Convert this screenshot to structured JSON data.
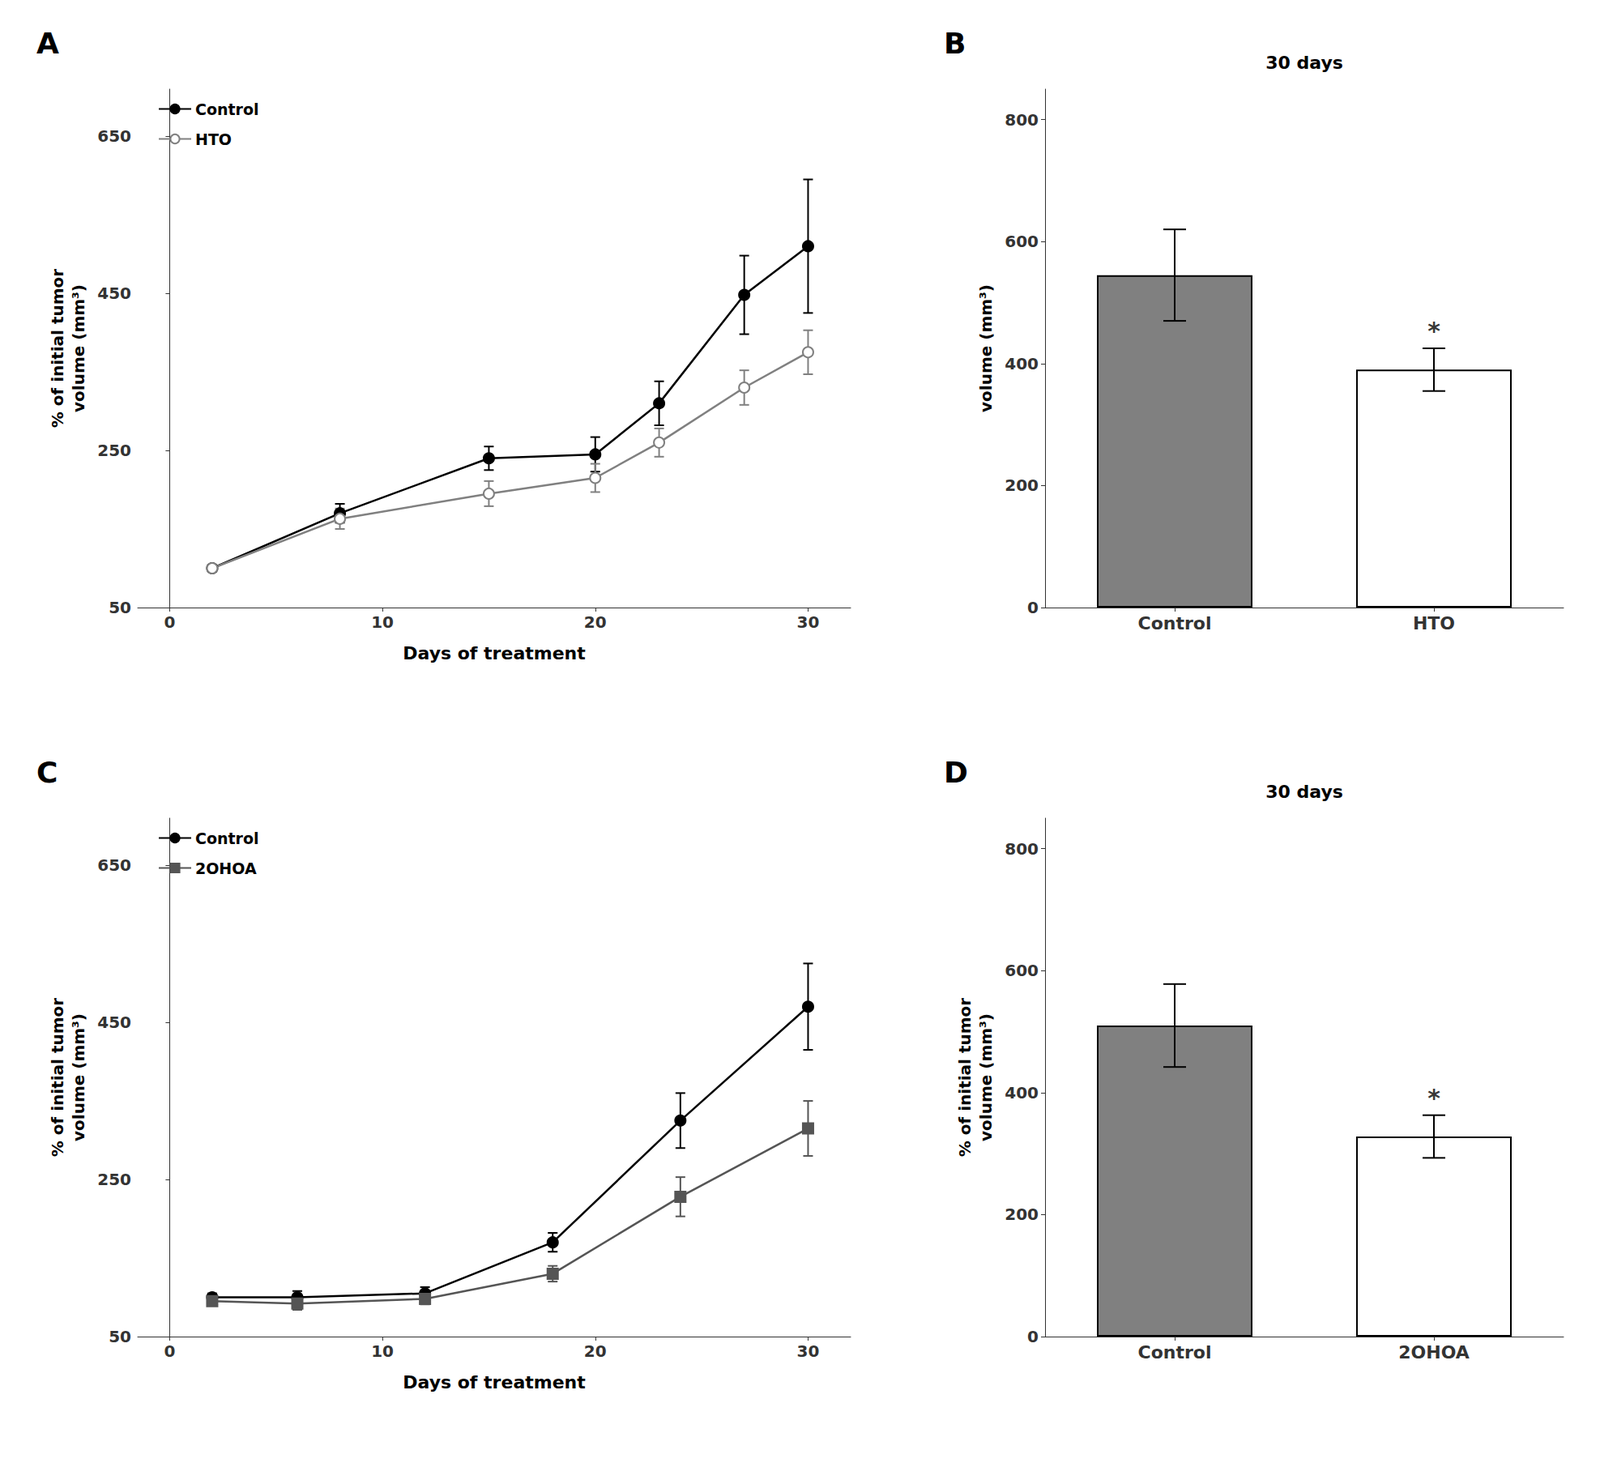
{
  "chart_data": [
    {
      "type": "line",
      "title": "A",
      "xlabel": "Days of treatment",
      "ylabel": "% of initial tumor\nvolume (mm³)",
      "xlim": [
        -1.5,
        32
      ],
      "xticks": [
        0,
        10,
        20,
        30
      ],
      "ylim": [
        50,
        710
      ],
      "yticks": [
        50,
        250,
        450,
        650
      ],
      "grid": false,
      "legend": "upper left",
      "x": [
        2,
        8,
        15,
        20,
        23,
        27,
        30
      ],
      "series": [
        {
          "name": "Control",
          "color": "#000000",
          "marker": "circle",
          "line_style": "solid",
          "values": [
            100,
            170,
            240,
            245,
            310,
            448,
            510
          ],
          "errors": [
            4,
            12,
            15,
            22,
            28,
            50,
            85
          ]
        },
        {
          "name": "HTO",
          "color": "#808080",
          "marker": "open_circle",
          "line_style": "solid",
          "values": [
            100,
            163,
            195,
            215,
            260,
            330,
            375
          ],
          "errors": [
            4,
            13,
            16,
            18,
            18,
            22,
            28
          ]
        }
      ]
    },
    {
      "type": "bar",
      "title": "B",
      "subtitle": "30 days",
      "ylabel": "volume (mm³)",
      "ylim": [
        0,
        850
      ],
      "yticks": [
        0,
        200,
        400,
        600,
        800
      ],
      "grid": false,
      "categories": [
        "Control",
        "HTO"
      ],
      "values": [
        545,
        390
      ],
      "errors": [
        75,
        35
      ],
      "colors": [
        "#808080",
        "#ffffff"
      ],
      "annotations": [
        {
          "text": "*",
          "category": "HTO"
        }
      ]
    },
    {
      "type": "line",
      "title": "C",
      "xlabel": "Days of treatment",
      "ylabel": "% of initial tumor\nvolume (mm³)",
      "xlim": [
        -1.5,
        32
      ],
      "xticks": [
        0,
        10,
        20,
        30
      ],
      "ylim": [
        50,
        710
      ],
      "yticks": [
        50,
        250,
        450,
        650
      ],
      "grid": false,
      "legend": "upper left",
      "x": [
        2,
        6,
        12,
        18,
        24,
        30
      ],
      "series": [
        {
          "name": "Control",
          "color": "#000000",
          "marker": "circle",
          "line_style": "solid",
          "values": [
            100,
            100,
            105,
            170,
            325,
            470
          ],
          "errors": [
            5,
            8,
            8,
            12,
            35,
            55
          ]
        },
        {
          "name": "2OHOA",
          "color": "#555555",
          "marker": "square",
          "line_style": "solid",
          "values": [
            95,
            92,
            98,
            130,
            228,
            315
          ],
          "errors": [
            5,
            8,
            7,
            10,
            25,
            35
          ]
        }
      ]
    },
    {
      "type": "bar",
      "title": "D",
      "subtitle": "30 days",
      "ylabel": "% of initial tumor\nvolume (mm³)",
      "ylim": [
        0,
        850
      ],
      "yticks": [
        0,
        200,
        400,
        600,
        800
      ],
      "grid": false,
      "categories": [
        "Control",
        "2OHOA"
      ],
      "values": [
        510,
        328
      ],
      "errors": [
        68,
        35
      ],
      "colors": [
        "#808080",
        "#ffffff"
      ],
      "annotations": [
        {
          "text": "*",
          "category": "2OHOA"
        }
      ]
    }
  ]
}
